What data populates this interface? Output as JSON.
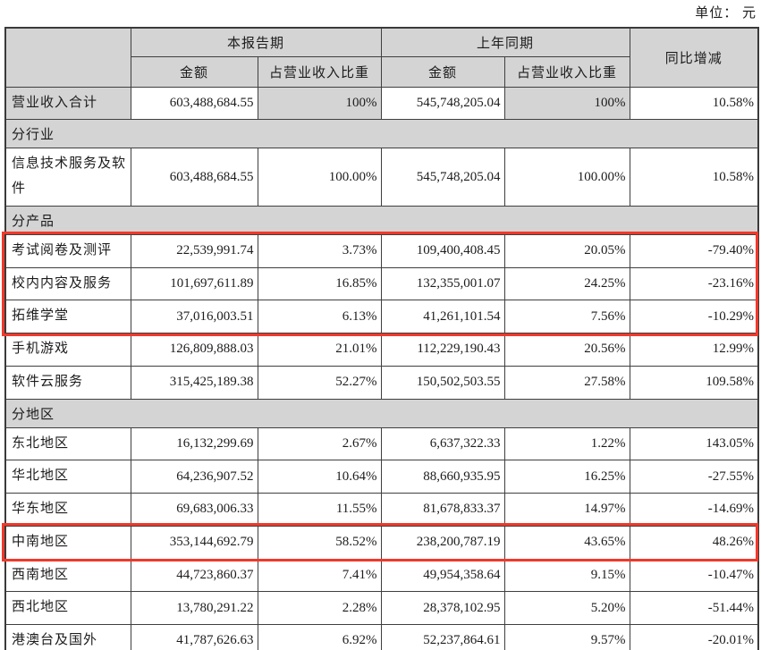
{
  "unit_label": "单位： 元",
  "table": {
    "headers": {
      "current_period": "本报告期",
      "prior_period": "上年同期",
      "yoy_change": "同比增减",
      "amount": "金额",
      "share_of_revenue": "占营业收入比重"
    },
    "rows": [
      {
        "type": "total",
        "label": "营业收入合计",
        "cur_amt": "603,488,684.55",
        "cur_pct": "100%",
        "pri_amt": "545,748,205.04",
        "pri_pct": "100%",
        "yoy": "10.58%"
      },
      {
        "type": "section",
        "label": "分行业"
      },
      {
        "type": "data",
        "label": "信息技术服务及软件",
        "cur_amt": "603,488,684.55",
        "cur_pct": "100.00%",
        "pri_amt": "545,748,205.04",
        "pri_pct": "100.00%",
        "yoy": "10.58%"
      },
      {
        "type": "section",
        "label": "分产品"
      },
      {
        "type": "data",
        "label": "考试阅卷及测评",
        "cur_amt": "22,539,991.74",
        "cur_pct": "3.73%",
        "pri_amt": "109,400,408.45",
        "pri_pct": "20.05%",
        "yoy": "-79.40%"
      },
      {
        "type": "data",
        "label": "校内内容及服务",
        "cur_amt": "101,697,611.89",
        "cur_pct": "16.85%",
        "pri_amt": "132,355,001.07",
        "pri_pct": "24.25%",
        "yoy": "-23.16%"
      },
      {
        "type": "data",
        "label": "拓维学堂",
        "cur_amt": "37,016,003.51",
        "cur_pct": "6.13%",
        "pri_amt": "41,261,101.54",
        "pri_pct": "7.56%",
        "yoy": "-10.29%"
      },
      {
        "type": "data",
        "label": "手机游戏",
        "cur_amt": "126,809,888.03",
        "cur_pct": "21.01%",
        "pri_amt": "112,229,190.43",
        "pri_pct": "20.56%",
        "yoy": "12.99%"
      },
      {
        "type": "data",
        "label": "软件云服务",
        "cur_amt": "315,425,189.38",
        "cur_pct": "52.27%",
        "pri_amt": "150,502,503.55",
        "pri_pct": "27.58%",
        "yoy": "109.58%"
      },
      {
        "type": "section",
        "label": "分地区"
      },
      {
        "type": "data",
        "label": "东北地区",
        "cur_amt": "16,132,299.69",
        "cur_pct": "2.67%",
        "pri_amt": "6,637,322.33",
        "pri_pct": "1.22%",
        "yoy": "143.05%"
      },
      {
        "type": "data",
        "label": "华北地区",
        "cur_amt": "64,236,907.52",
        "cur_pct": "10.64%",
        "pri_amt": "88,660,935.95",
        "pri_pct": "16.25%",
        "yoy": "-27.55%"
      },
      {
        "type": "data",
        "label": "华东地区",
        "cur_amt": "69,683,006.33",
        "cur_pct": "11.55%",
        "pri_amt": "81,678,833.37",
        "pri_pct": "14.97%",
        "yoy": "-14.69%"
      },
      {
        "type": "data",
        "label": "中南地区",
        "cur_amt": "353,144,692.79",
        "cur_pct": "58.52%",
        "pri_amt": "238,200,787.19",
        "pri_pct": "43.65%",
        "yoy": "48.26%"
      },
      {
        "type": "data",
        "label": "西南地区",
        "cur_amt": "44,723,860.37",
        "cur_pct": "7.41%",
        "pri_amt": "49,954,358.64",
        "pri_pct": "9.15%",
        "yoy": "-10.47%"
      },
      {
        "type": "data",
        "label": "西北地区",
        "cur_amt": "13,780,291.22",
        "cur_pct": "2.28%",
        "pri_amt": "28,378,102.95",
        "pri_pct": "5.20%",
        "yoy": "-51.44%"
      },
      {
        "type": "data",
        "label": "港澳台及国外",
        "cur_amt": "41,787,626.63",
        "cur_pct": "6.92%",
        "pri_amt": "52,237,864.61",
        "pri_pct": "9.57%",
        "yoy": "-20.01%"
      }
    ],
    "highlighted_groups": [
      [
        "考试阅卷及测评",
        "校内内容及服务",
        "拓维学堂"
      ],
      [
        "中南地区"
      ]
    ],
    "highlight_color": "#f0392b",
    "header_fill_color": "#d4d4d4"
  }
}
